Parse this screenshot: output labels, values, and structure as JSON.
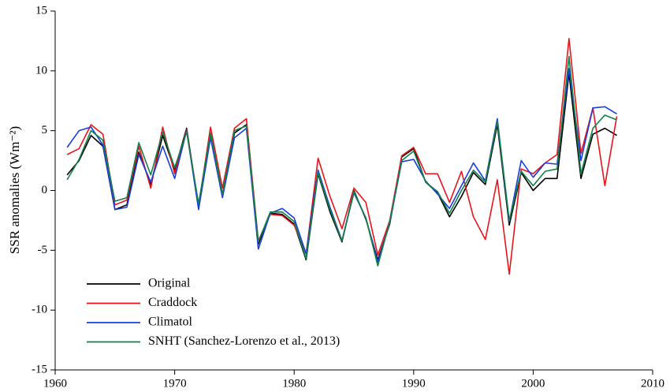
{
  "chart_data": {
    "type": "line",
    "y_label": "SSR anomalies (Wm⁻²)",
    "x": [
      1961,
      1962,
      1963,
      1964,
      1965,
      1966,
      1967,
      1968,
      1969,
      1970,
      1971,
      1972,
      1973,
      1974,
      1975,
      1976,
      1977,
      1978,
      1979,
      1980,
      1981,
      1982,
      1983,
      1984,
      1985,
      1986,
      1987,
      1988,
      1989,
      1990,
      1991,
      1992,
      1993,
      1994,
      1995,
      1996,
      1997,
      1998,
      1999,
      2000,
      2001,
      2002,
      2003,
      2004,
      2005,
      2006,
      2007
    ],
    "series": [
      {
        "name": "Original",
        "color": "#000000",
        "values": [
          1.3,
          2.5,
          4.6,
          3.7,
          -1.6,
          -1.2,
          3.2,
          0.5,
          4.6,
          1.7,
          5.2,
          -1.3,
          4.6,
          -0.5,
          4.8,
          5.5,
          -4.5,
          -1.9,
          -2.0,
          -2.8,
          -5.8,
          1.4,
          -1.8,
          -4.3,
          0.0,
          -2.4,
          -5.8,
          -2.8,
          2.8,
          3.5,
          0.7,
          -0.2,
          -2.2,
          -0.5,
          1.5,
          0.5,
          5.5,
          -2.9,
          1.5,
          0.0,
          1.0,
          1.0,
          9.8,
          1.0,
          4.7,
          5.2,
          4.6
        ]
      },
      {
        "name": "Craddock",
        "color": "#e8141c",
        "values": [
          3.0,
          3.5,
          5.5,
          4.7,
          -1.2,
          -0.8,
          3.7,
          0.2,
          5.3,
          1.4,
          5.1,
          -1.3,
          5.3,
          0.2,
          5.2,
          6.0,
          -4.2,
          -2.0,
          -2.1,
          -2.9,
          -5.3,
          2.7,
          -0.5,
          -3.2,
          0.2,
          -1.0,
          -5.4,
          -2.5,
          2.9,
          3.6,
          1.4,
          1.4,
          -1.0,
          1.6,
          -2.2,
          -4.1,
          0.9,
          -7.0,
          1.8,
          1.4,
          2.3,
          3.0,
          12.7,
          3.1,
          6.9,
          0.4,
          6.2
        ]
      },
      {
        "name": "Climatol",
        "color": "#1a3de0",
        "values": [
          3.6,
          5.0,
          5.3,
          3.8,
          -1.6,
          -1.4,
          3.0,
          0.7,
          3.7,
          1.0,
          5.0,
          -1.6,
          4.4,
          -0.6,
          4.4,
          5.2,
          -4.9,
          -1.9,
          -1.5,
          -2.3,
          -5.3,
          1.7,
          -1.4,
          -4.2,
          -0.2,
          -2.3,
          -6.0,
          -2.7,
          2.4,
          2.6,
          0.8,
          -0.3,
          -1.5,
          0.4,
          2.3,
          0.8,
          6.0,
          -2.6,
          2.5,
          1.1,
          2.3,
          2.2,
          10.2,
          2.5,
          6.9,
          7.0,
          6.4
        ]
      },
      {
        "name": "SNHT (Sanchez-Lorenzo et al., 2013)",
        "color": "#12804a",
        "values": [
          0.9,
          2.6,
          5.0,
          4.2,
          -0.9,
          -0.6,
          4.0,
          1.3,
          4.9,
          1.9,
          4.9,
          -1.1,
          4.8,
          -0.3,
          5.0,
          5.4,
          -4.3,
          -1.8,
          -1.8,
          -2.6,
          -5.7,
          1.5,
          -1.6,
          -4.2,
          -0.1,
          -2.3,
          -6.3,
          -2.6,
          2.5,
          3.3,
          0.7,
          -0.1,
          -1.9,
          0.0,
          1.7,
          0.7,
          5.8,
          -2.5,
          1.6,
          0.4,
          1.6,
          1.8,
          11.2,
          1.4,
          5.2,
          6.3,
          5.9
        ]
      }
    ],
    "xlim": [
      1960,
      2010
    ],
    "xticks": [
      1960,
      1970,
      1980,
      1990,
      2000,
      2010
    ],
    "ylim": [
      -15,
      15
    ],
    "yticks": [
      -15,
      -10,
      -5,
      0,
      5,
      10,
      15
    ],
    "legend": "lower left"
  }
}
